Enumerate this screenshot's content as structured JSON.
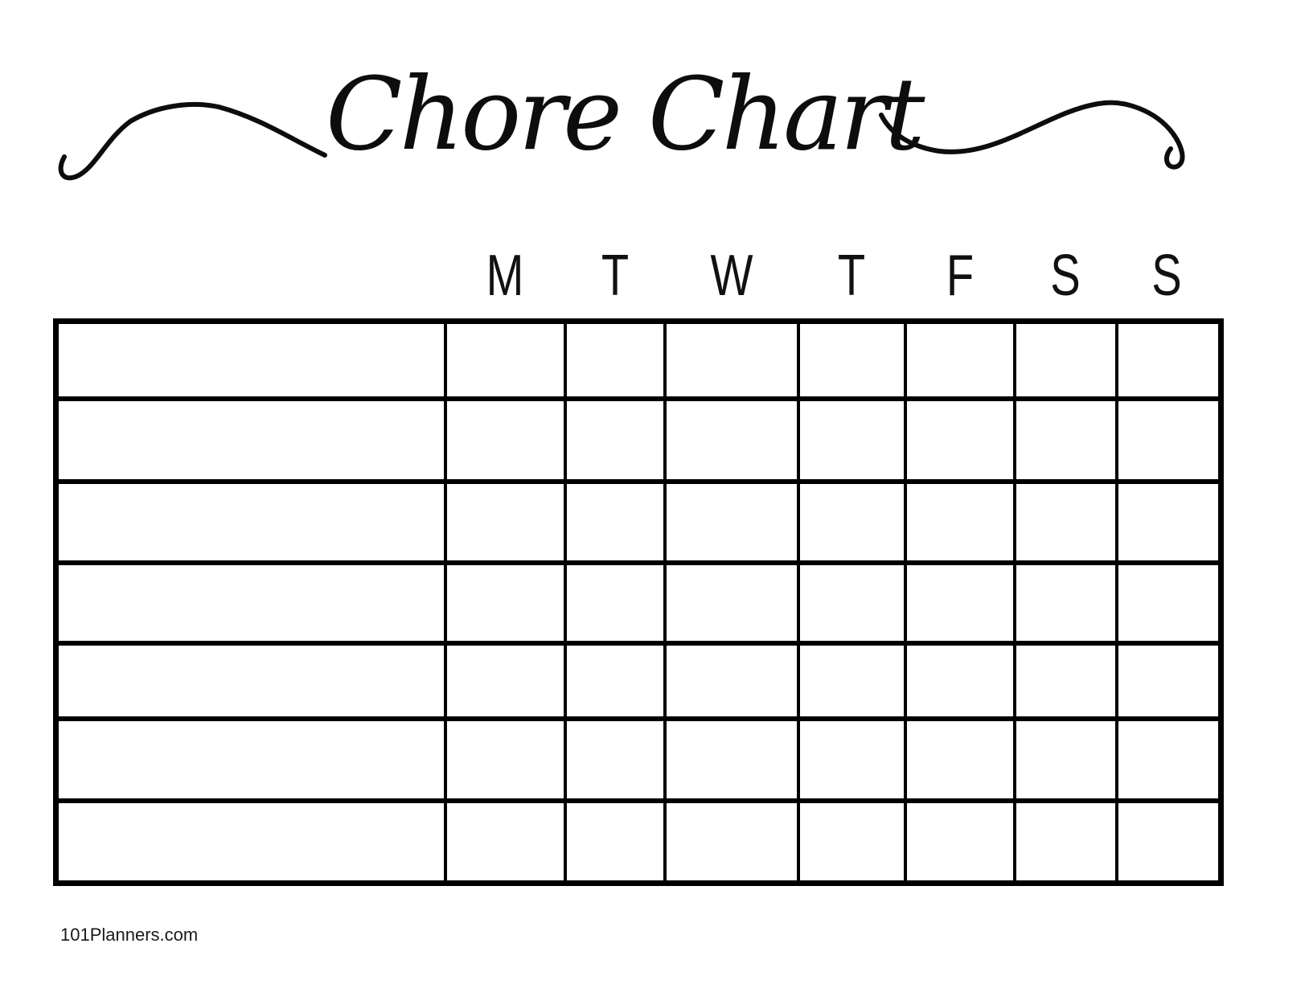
{
  "page": {
    "background_color": "#ffffff",
    "ink_color": "#000000"
  },
  "title": {
    "text": "Chore Chart"
  },
  "week": {
    "day_labels": [
      "M",
      "T",
      "W",
      "T",
      "F",
      "S",
      "S"
    ]
  },
  "table": {
    "rows": 7,
    "columns": 8,
    "all_cells_blank": true
  },
  "footer": {
    "text": "101Planners.com"
  }
}
